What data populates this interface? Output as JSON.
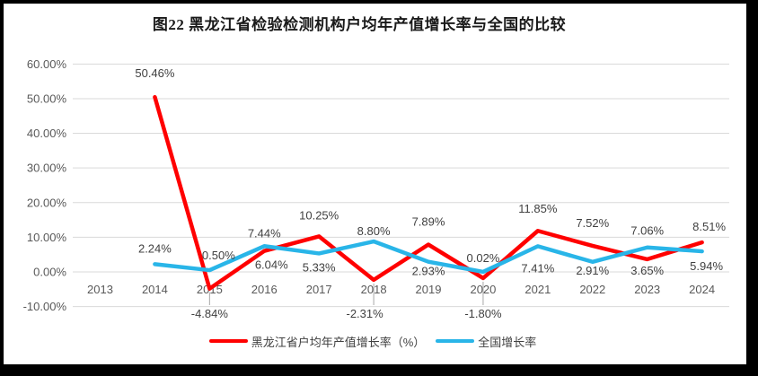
{
  "chart_data": {
    "type": "line",
    "title": "图22 黑龙江省检验检测机构户均年产值增长率与全国的比较",
    "categories": [
      "2013",
      "2014",
      "2015",
      "2016",
      "2017",
      "2018",
      "2019",
      "2020",
      "2021",
      "2022",
      "2023",
      "2024"
    ],
    "series": [
      {
        "name": "黑龙江省户均年产值增长率（%）",
        "color": "#FF0000",
        "values": [
          null,
          50.46,
          -4.84,
          6.04,
          10.25,
          -2.31,
          7.89,
          -1.8,
          11.85,
          7.52,
          3.65,
          8.51
        ]
      },
      {
        "name": "全国增长率",
        "color": "#29B5E8",
        "values": [
          null,
          2.24,
          0.5,
          7.44,
          5.33,
          8.8,
          2.93,
          0.02,
          7.41,
          2.91,
          7.06,
          5.94
        ]
      }
    ],
    "y_axis": {
      "min": -10,
      "max": 60,
      "step": 10,
      "tick_labels": [
        "60.00%",
        "50.00%",
        "40.00%",
        "30.00%",
        "20.00%",
        "10.00%",
        "0.00%",
        "-10.00%"
      ],
      "format": "0.00%"
    },
    "grid": true,
    "data_labels": true,
    "legend_position": "bottom",
    "colors": {
      "gridline": "#D9D9D9",
      "axis_text": "#595959",
      "data_label_text": "#404040",
      "leader_line": "#A6A6A6",
      "frame": "#000000"
    }
  }
}
